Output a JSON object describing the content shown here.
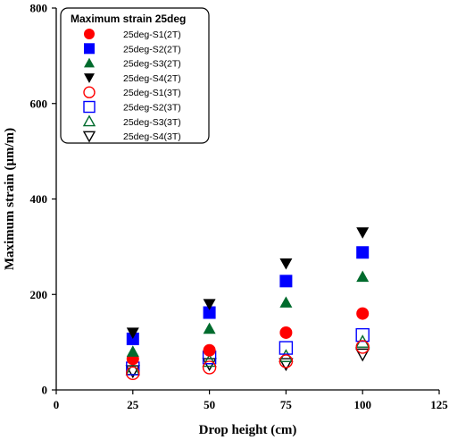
{
  "chart_data": {
    "type": "scatter",
    "xlabel": "Drop height (cm)",
    "ylabel": "Maximum strain (μm/m)",
    "xlim": [
      0,
      125
    ],
    "ylim": [
      0,
      800
    ],
    "xticks": [
      "0",
      "25",
      "50",
      "75",
      "100",
      "125"
    ],
    "yticks": [
      "0",
      "200",
      "400",
      "600",
      "800"
    ],
    "legend": {
      "title": "Maximum strain 25deg",
      "position": "top-left"
    },
    "x": [
      25,
      50,
      75,
      100
    ],
    "series": [
      {
        "name": "25deg-S1(2T)",
        "marker": "circle",
        "filled": true,
        "color": "#ff0000",
        "values": [
          65,
          83,
          120,
          160
        ]
      },
      {
        "name": "25deg-S2(2T)",
        "marker": "square",
        "filled": true,
        "color": "#0000ff",
        "values": [
          107,
          162,
          228,
          288
        ]
      },
      {
        "name": "25deg-S3(2T)",
        "marker": "triangle-up",
        "filled": true,
        "color": "#006b2d",
        "values": [
          80,
          128,
          183,
          237
        ]
      },
      {
        "name": "25deg-S4(2T)",
        "marker": "triangle-down",
        "filled": true,
        "color": "#000000",
        "values": [
          120,
          180,
          265,
          330
        ]
      },
      {
        "name": "25deg-S1(3T)",
        "marker": "circle",
        "filled": false,
        "color": "#ff0000",
        "values": [
          35,
          47,
          60,
          90
        ]
      },
      {
        "name": "25deg-S2(3T)",
        "marker": "square",
        "filled": false,
        "color": "#0000ff",
        "values": [
          45,
          68,
          88,
          115
        ]
      },
      {
        "name": "25deg-S3(3T)",
        "marker": "triangle-up",
        "filled": false,
        "color": "#006b2d",
        "values": [
          43,
          60,
          70,
          100
        ]
      },
      {
        "name": "25deg-S4(3T)",
        "marker": "triangle-down",
        "filled": false,
        "color": "#000000",
        "values": [
          40,
          55,
          55,
          75
        ]
      }
    ]
  }
}
